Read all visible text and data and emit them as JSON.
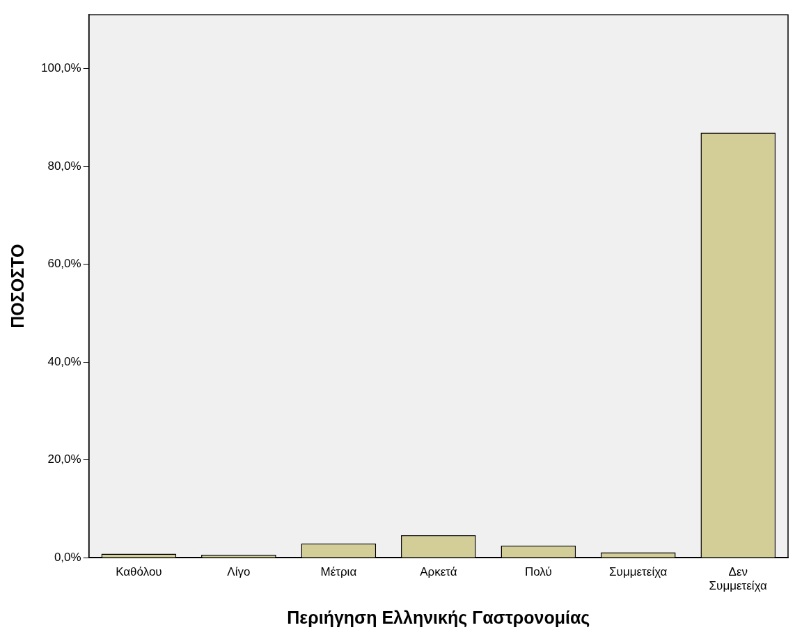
{
  "chart_data": {
    "type": "bar",
    "xlabel": "Περιήγηση Ελληνικής Γαστρονομίας",
    "ylabel": "ΠΟΣΟΣΤΟ",
    "categories": [
      "Καθόλου",
      "Λίγο",
      "Μέτρια",
      "Αρκετά",
      "Πολύ",
      "Συμμετείχα",
      "Δεν Συμμετείχα"
    ],
    "values": [
      0.8,
      0.6,
      2.9,
      4.6,
      2.5,
      1.1,
      86.9
    ],
    "color": "#d3ce97",
    "ylim": [
      0,
      111
    ],
    "yticks": [
      {
        "value": 0,
        "label": "0,0%"
      },
      {
        "value": 20,
        "label": "20,0%"
      },
      {
        "value": 40,
        "label": "40,0%"
      },
      {
        "value": 60,
        "label": "60,0%"
      },
      {
        "value": 80,
        "label": "80,0%"
      },
      {
        "value": 100,
        "label": "100,0%"
      }
    ],
    "grid": false,
    "legend": false
  }
}
